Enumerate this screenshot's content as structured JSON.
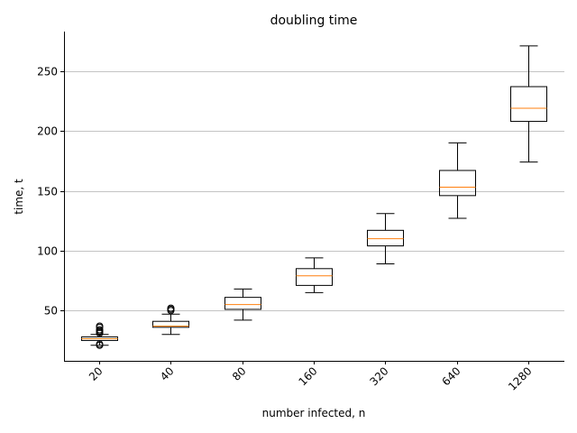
{
  "chart_data": {
    "type": "box",
    "title": "doubling time",
    "xlabel": "number infected, n",
    "ylabel": "time, t",
    "categories": [
      "20",
      "40",
      "80",
      "160",
      "320",
      "640",
      "1280"
    ],
    "ylim": [
      8,
      283
    ],
    "yticks": [
      50,
      100,
      150,
      200,
      250
    ],
    "grid": "y",
    "boxes": [
      {
        "whislo": 21,
        "q1": 25,
        "med": 26.5,
        "q3": 28,
        "whishi": 30,
        "fliers": [
          21,
          22,
          31,
          32,
          33,
          34,
          36,
          37
        ]
      },
      {
        "whislo": 30,
        "q1": 36,
        "med": 37,
        "q3": 41,
        "whishi": 47,
        "fliers": [
          50,
          51,
          52
        ]
      },
      {
        "whislo": 42,
        "q1": 51,
        "med": 55,
        "q3": 61,
        "whishi": 68,
        "fliers": []
      },
      {
        "whislo": 65,
        "q1": 71,
        "med": 79,
        "q3": 85,
        "whishi": 94,
        "fliers": []
      },
      {
        "whislo": 89,
        "q1": 104,
        "med": 110,
        "q3": 117,
        "whishi": 131,
        "fliers": []
      },
      {
        "whislo": 127,
        "q1": 146,
        "med": 153,
        "q3": 167,
        "whishi": 190,
        "fliers": []
      },
      {
        "whislo": 174,
        "q1": 208,
        "med": 219,
        "q3": 237,
        "whishi": 271,
        "fliers": []
      }
    ]
  }
}
